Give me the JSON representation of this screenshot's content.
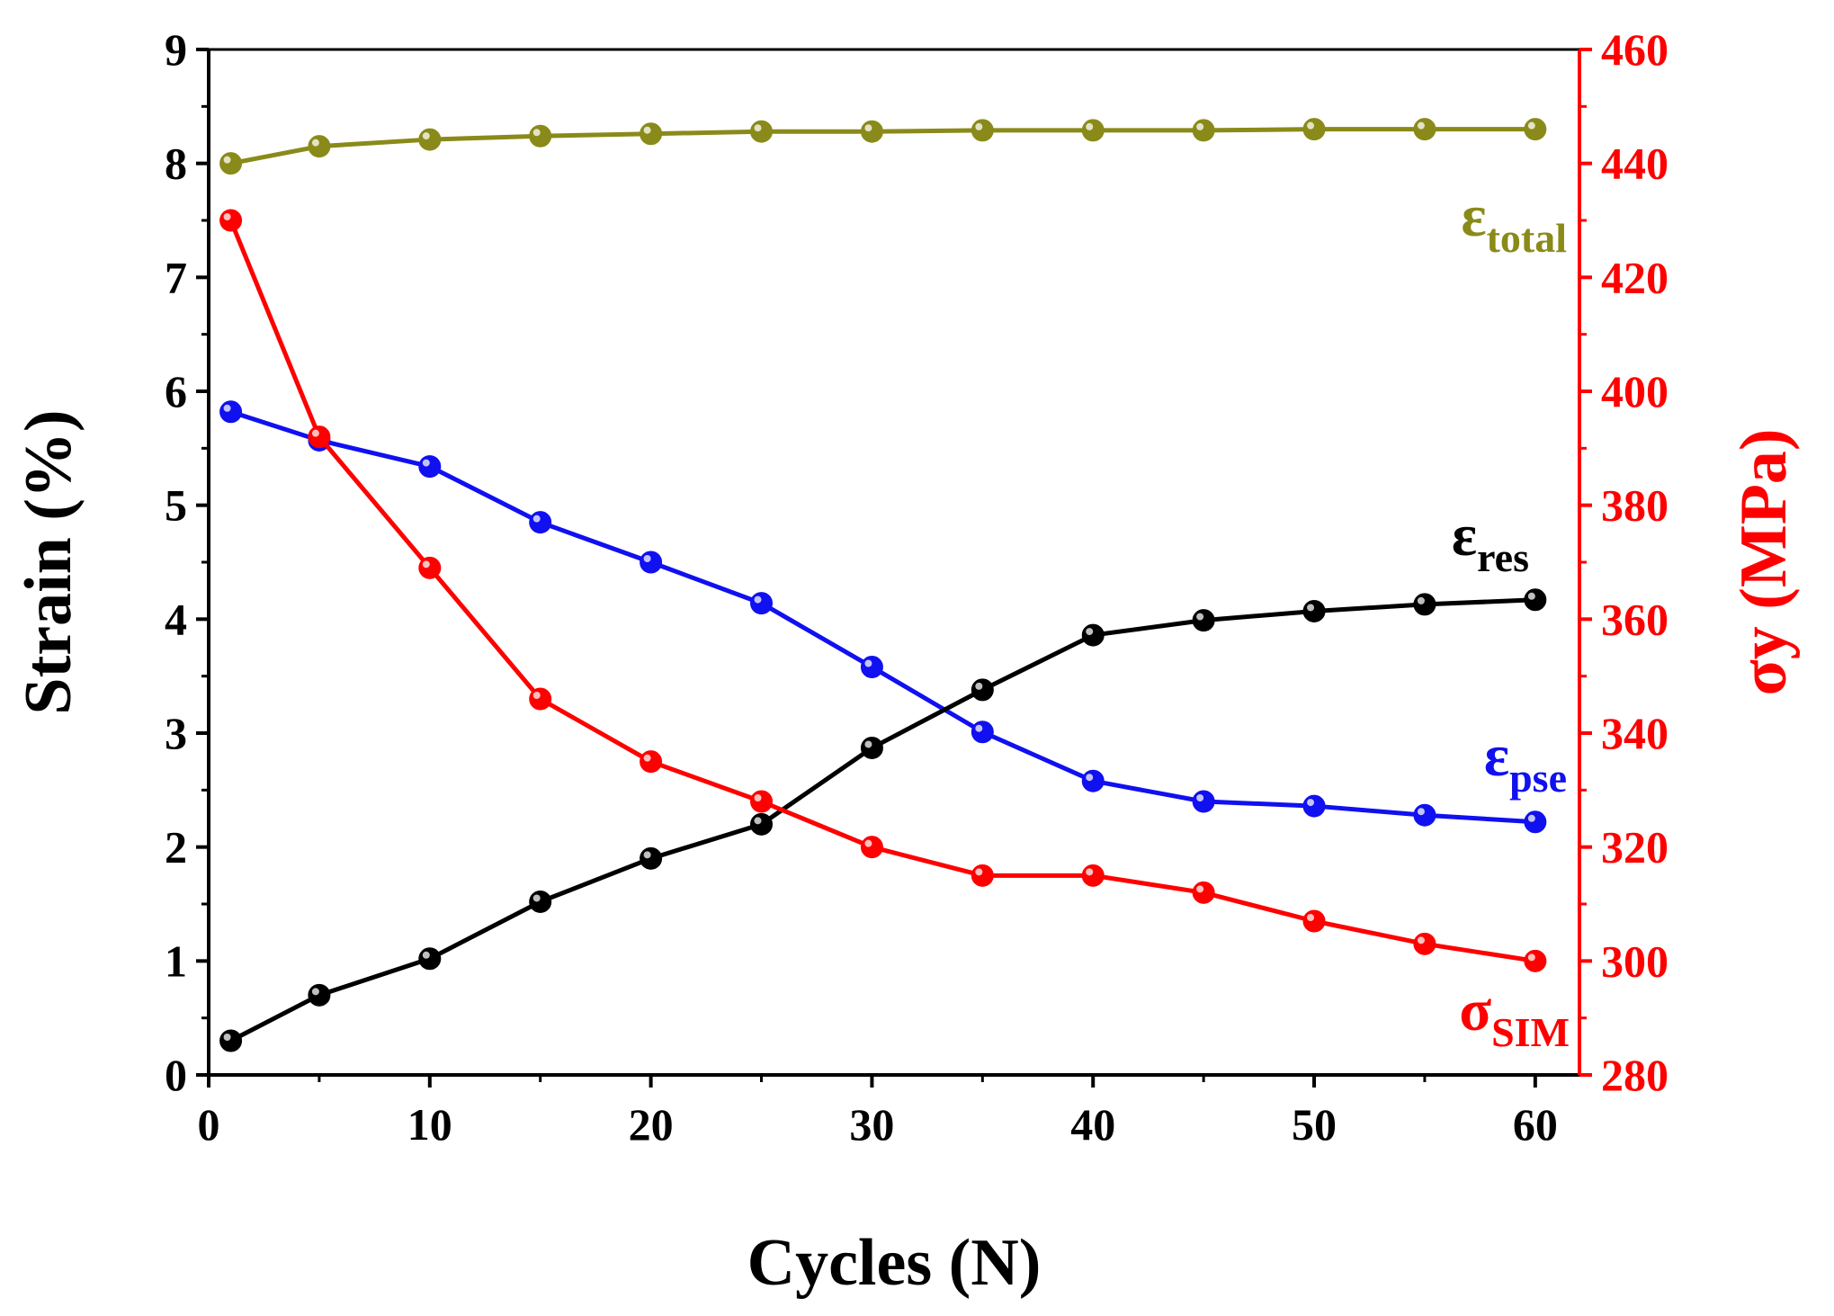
{
  "chart_data": {
    "type": "line",
    "x": [
      1,
      5,
      10,
      15,
      20,
      25,
      30,
      35,
      40,
      45,
      50,
      55,
      60
    ],
    "xlabel": "Cycles (N)",
    "xlim": [
      0,
      62
    ],
    "xticks": [
      0,
      10,
      20,
      30,
      40,
      50,
      60
    ],
    "ylabel": "Strain (%)",
    "ylim": [
      0,
      9
    ],
    "yticks": [
      0,
      1,
      2,
      3,
      4,
      5,
      6,
      7,
      8,
      9
    ],
    "y2label": "σy (MPa)",
    "y2lim": [
      280,
      460
    ],
    "y2ticks": [
      280,
      300,
      320,
      340,
      360,
      380,
      400,
      420,
      440,
      460
    ],
    "grid": false,
    "series": [
      {
        "name": "ε_total",
        "label_main": "ε",
        "label_sub": "total",
        "axis": "left",
        "color": "#8a8a1a",
        "values": [
          8.0,
          8.15,
          8.21,
          8.24,
          8.26,
          8.28,
          8.28,
          8.29,
          8.29,
          8.29,
          8.3,
          8.3,
          8.3
        ]
      },
      {
        "name": "ε_pse",
        "label_main": "ε",
        "label_sub": "pse",
        "axis": "left",
        "color": "#1010f0",
        "values": [
          5.82,
          5.57,
          5.34,
          4.85,
          4.5,
          4.14,
          3.58,
          3.01,
          2.58,
          2.4,
          2.36,
          2.28,
          2.22
        ]
      },
      {
        "name": "ε_res",
        "label_main": "ε",
        "label_sub": "res",
        "axis": "left",
        "color": "#000000",
        "values": [
          0.3,
          0.7,
          1.02,
          1.52,
          1.9,
          2.2,
          2.87,
          3.38,
          3.86,
          3.99,
          4.07,
          4.13,
          4.17
        ]
      },
      {
        "name": "σ_SIM",
        "label_main": "σ",
        "label_sub": "SIM",
        "axis": "right",
        "color": "#ff0000",
        "values": [
          430,
          392,
          369,
          346,
          335,
          328,
          320,
          315,
          315,
          312,
          307,
          303,
          300
        ]
      }
    ]
  }
}
